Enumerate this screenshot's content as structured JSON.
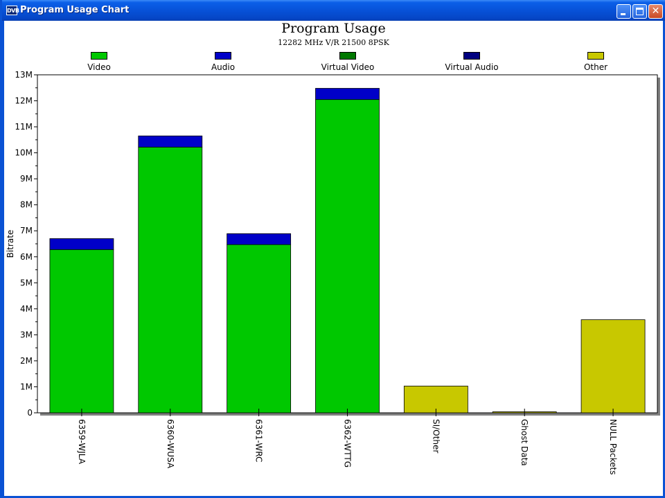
{
  "window": {
    "title": "Program Usage Chart",
    "app_icon_text": "DVB",
    "controls": {
      "minimize_icon": "minimize-icon",
      "maximize_icon": "maximize-icon",
      "close_icon": "close-icon"
    }
  },
  "colors": {
    "video": "#00c800",
    "audio": "#0000c8",
    "virtual_video": "#007800",
    "virtual_audio": "#000080",
    "other": "#c8c800",
    "titlebar": "#0752d8"
  },
  "legend": [
    {
      "label": "Video",
      "color": "#00c800"
    },
    {
      "label": "Audio",
      "color": "#0000c8"
    },
    {
      "label": "Virtual Video",
      "color": "#007800"
    },
    {
      "label": "Virtual Audio",
      "color": "#000080"
    },
    {
      "label": "Other",
      "color": "#c8c800"
    }
  ],
  "chart_data": {
    "type": "bar",
    "stacked": true,
    "title": "Program Usage",
    "subtitle": "12282 MHz V/R 21500 8PSK",
    "xlabel": "",
    "ylabel": "Bitrate",
    "ylim": [
      0,
      13000000
    ],
    "ytick_labels": [
      "0",
      "1M",
      "2M",
      "3M",
      "4M",
      "5M",
      "6M",
      "7M",
      "8M",
      "9M",
      "10M",
      "11M",
      "12M",
      "13M"
    ],
    "categories": [
      "6359-WJLA",
      "6360-WUSA",
      "6361-WRC",
      "6362-WTTG",
      "SI/Other",
      "Ghost Data",
      "NULL Packets"
    ],
    "series": [
      {
        "name": "Video",
        "color": "#00c800",
        "values": [
          6280000,
          10220000,
          6470000,
          12050000,
          0,
          0,
          0
        ]
      },
      {
        "name": "Audio",
        "color": "#0000c8",
        "values": [
          420000,
          430000,
          420000,
          430000,
          0,
          0,
          0
        ]
      },
      {
        "name": "Virtual Video",
        "color": "#007800",
        "values": [
          0,
          0,
          0,
          0,
          0,
          0,
          0
        ]
      },
      {
        "name": "Virtual Audio",
        "color": "#000080",
        "values": [
          0,
          0,
          0,
          0,
          0,
          0,
          0
        ]
      },
      {
        "name": "Other",
        "color": "#c8c800",
        "values": [
          0,
          0,
          0,
          0,
          1030000,
          40000,
          3580000
        ]
      }
    ],
    "grid": false,
    "legend_position": "top"
  }
}
